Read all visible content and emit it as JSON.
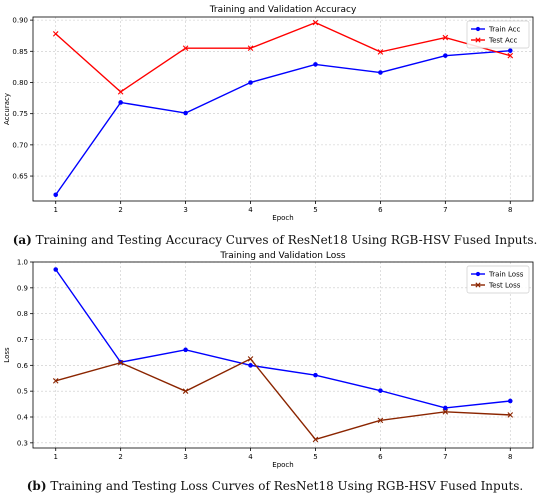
{
  "chart_data": [
    {
      "type": "line",
      "title": "Training and Validation Accuracy",
      "xlabel": "Epoch",
      "ylabel": "Accuracy",
      "x": [
        1,
        2,
        3,
        4,
        5,
        6,
        7,
        8
      ],
      "xticks": [
        "1",
        "2",
        "3",
        "4",
        "5",
        "6",
        "7",
        "8"
      ],
      "xlim": [
        0.65,
        8.35
      ],
      "ylim": [
        0.61,
        0.905
      ],
      "yticks": [
        "0.65",
        "0.70",
        "0.75",
        "0.80",
        "0.85",
        "0.90"
      ],
      "grid": true,
      "legend": "top-right",
      "series": [
        {
          "name": "Train Acc",
          "color": "#0000ff",
          "marker": "circle",
          "values": [
            0.62,
            0.768,
            0.751,
            0.8,
            0.829,
            0.816,
            0.843,
            0.851
          ]
        },
        {
          "name": "Test Acc",
          "color": "#ff0000",
          "marker": "x",
          "values": [
            0.878,
            0.785,
            0.855,
            0.855,
            0.896,
            0.849,
            0.872,
            0.843
          ]
        }
      ]
    },
    {
      "type": "line",
      "title": "Training and Validation Loss",
      "xlabel": "Epoch",
      "ylabel": "Loss",
      "x": [
        1,
        2,
        3,
        4,
        5,
        6,
        7,
        8
      ],
      "xticks": [
        "1",
        "2",
        "3",
        "4",
        "5",
        "6",
        "7",
        "8"
      ],
      "xlim": [
        0.65,
        8.35
      ],
      "ylim": [
        0.28,
        1.0
      ],
      "yticks": [
        "0.3",
        "0.4",
        "0.5",
        "0.6",
        "0.7",
        "0.8",
        "0.9",
        "1.0"
      ],
      "grid": true,
      "legend": "top-right",
      "series": [
        {
          "name": "Train Loss",
          "color": "#0000ff",
          "marker": "circle",
          "values": [
            0.971,
            0.612,
            0.66,
            0.6,
            0.562,
            0.502,
            0.435,
            0.462
          ]
        },
        {
          "name": "Test Loss",
          "color": "#8b2500",
          "marker": "x",
          "values": [
            0.54,
            0.61,
            0.5,
            0.625,
            0.313,
            0.387,
            0.42,
            0.408
          ]
        }
      ]
    }
  ],
  "captions": {
    "a_label": "(a)",
    "a_text": " Training and Testing Accuracy Curves of ResNet18 Using RGB-HSV Fused Inputs.",
    "b_label": "(b)",
    "b_text": " Training and Testing Loss Curves of ResNet18 Using RGB-HSV Fused Inputs."
  }
}
